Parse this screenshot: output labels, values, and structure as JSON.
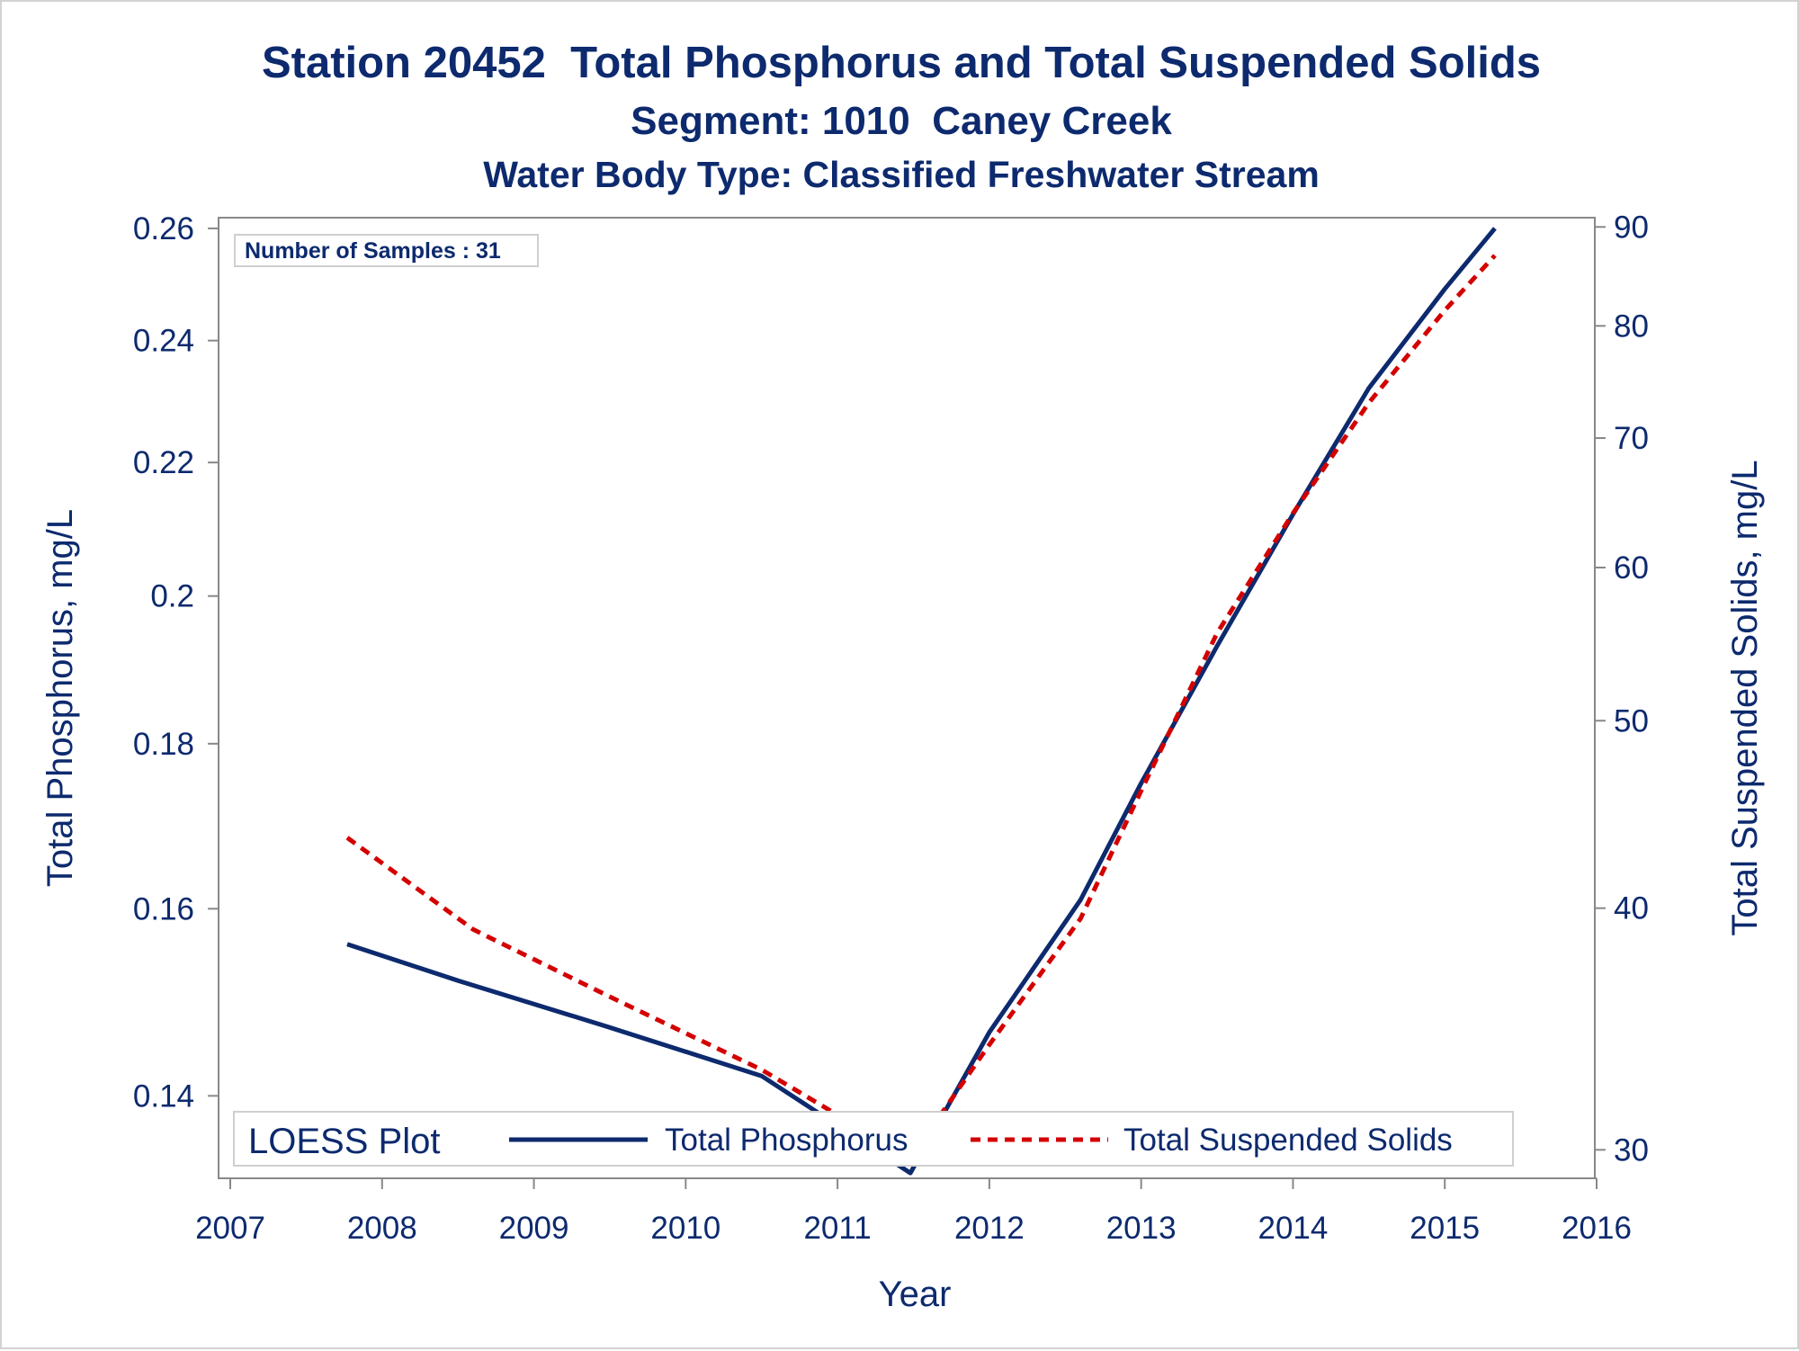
{
  "titles": {
    "line1": "Station 20452  Total Phosphorus and Total Suspended Solids",
    "line2": "Segment: 1010  Caney Creek",
    "line3": "Water Body Type: Classified Freshwater Stream"
  },
  "inset": "Number of Samples : 31",
  "legend": {
    "title": "LOESS Plot",
    "items": [
      "Total Phosphorus",
      "Total Suspended Solids"
    ]
  },
  "colors": {
    "text": "#0d2a6e",
    "phosphorus": "#0d2a6e",
    "tss": "#d40000",
    "axis": "#888888"
  },
  "chart_data": {
    "type": "line",
    "xlabel": "Year",
    "ylabel_left": "Total Phosphorus, mg/L",
    "ylabel_right": "Total Suspended Solids, mg/L",
    "x_ticks": [
      "2007",
      "2008",
      "2009",
      "2010",
      "2011",
      "2012",
      "2013",
      "2014",
      "2015",
      "2016"
    ],
    "y_left_ticks": [
      "0.14",
      "0.16",
      "0.18",
      "0.2",
      "0.22",
      "0.24",
      "0.26"
    ],
    "y_right_ticks": [
      "30",
      "40",
      "50",
      "60",
      "70",
      "80",
      "90"
    ],
    "xlim": [
      2007,
      2016
    ],
    "ylim_left": [
      0.132,
      0.262
    ],
    "ylim_right": [
      29,
      91
    ],
    "y_scale": "log",
    "grid": false,
    "legend_position": "bottom-inside",
    "series": [
      {
        "name": "Total Phosphorus",
        "axis": "left",
        "style": "solid",
        "x": [
          2007.77,
          2008.5,
          2009.5,
          2010.5,
          2011.48,
          2012.0,
          2012.6,
          2013.0,
          2013.5,
          2014.0,
          2014.5,
          2015.0,
          2015.33
        ],
        "y": [
          0.156,
          0.152,
          0.147,
          0.142,
          0.1325,
          0.1465,
          0.161,
          0.175,
          0.193,
          0.212,
          0.232,
          0.249,
          0.26
        ]
      },
      {
        "name": "Total Suspended Solids",
        "axis": "right",
        "style": "dashed",
        "x": [
          2007.77,
          2008.6,
          2009.5,
          2010.5,
          2011.48,
          2012.0,
          2012.6,
          2013.0,
          2013.5,
          2014.0,
          2014.5,
          2015.0,
          2015.33
        ],
        "y": [
          43.5,
          39.0,
          36.0,
          33.0,
          29.7,
          34.0,
          39.5,
          46.0,
          55.5,
          64.0,
          73.0,
          81.5,
          87.0
        ]
      }
    ]
  }
}
